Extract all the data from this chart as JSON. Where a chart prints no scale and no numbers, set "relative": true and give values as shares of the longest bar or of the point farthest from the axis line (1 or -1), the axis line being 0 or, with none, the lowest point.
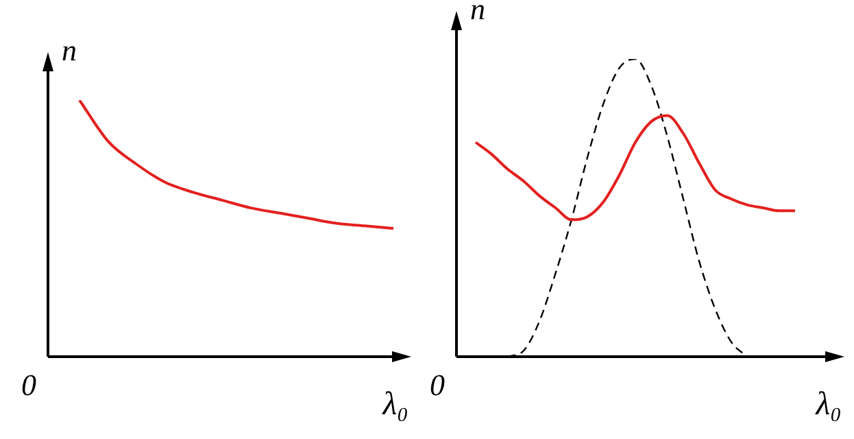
{
  "chart_data": [
    {
      "type": "line",
      "relative": true,
      "xlabel": "λ₀",
      "ylabel": "n",
      "annotations": [
        "0"
      ],
      "legend": false,
      "marker": "none",
      "categories": [
        null,
        null,
        null,
        null,
        null,
        null,
        null,
        null,
        null,
        null,
        null,
        null
      ],
      "series": [
        {
          "color": "#e3201f",
          "line_style": "solid",
          "values": [
            1,
            0.84,
            0.75,
            0.68,
            0.64,
            0.61,
            0.58,
            0.56,
            0.54,
            0.52,
            0.51,
            0.5
          ]
        }
      ]
    },
    {
      "type": "line",
      "relative": true,
      "xlabel": "λ₀",
      "ylabel": "n",
      "annotations": [
        "0"
      ],
      "legend": false,
      "marker": "none",
      "categories": [
        null,
        null,
        null,
        null,
        null,
        null,
        null,
        null,
        null,
        null,
        null,
        null,
        null,
        null,
        null,
        null,
        null,
        null,
        null,
        null,
        null
      ],
      "series": [
        {
          "color": "#e3201f",
          "line_style": "solid",
          "values": [
            0.72,
            0.68,
            0.63,
            0.59,
            0.54,
            0.5,
            0.46,
            0.47,
            0.52,
            0.61,
            0.72,
            0.79,
            0.81,
            0.75,
            0.65,
            0.56,
            0.53,
            0.51,
            0.5,
            0.49,
            0.49
          ]
        },
        {
          "color": "#000000",
          "line_style": "dashed",
          "values": [
            null,
            null,
            0,
            0.02,
            0.12,
            0.28,
            0.46,
            0.67,
            0.85,
            0.97,
            1,
            0.91,
            0.74,
            0.53,
            0.32,
            0.16,
            0.05,
            0,
            null,
            null,
            null
          ]
        }
      ]
    }
  ]
}
